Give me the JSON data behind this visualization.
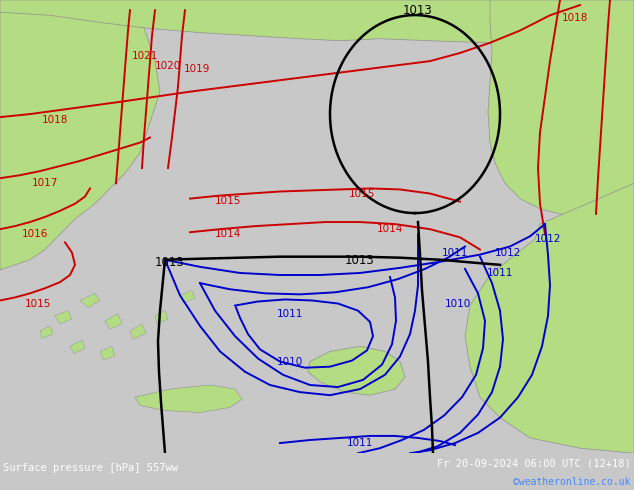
{
  "title_left": "Surface pressure [hPa] 557ww",
  "title_right": "Fr 20-09-2024 06:00 UTC (12+18)",
  "credit": "©weatheronline.co.uk",
  "bg_color": "#c8c8c8",
  "land_color": "#b4dc82",
  "sea_color": "#d4d4d4",
  "footer_bg": "#000000",
  "footer_text_color": "#ffffff",
  "credit_color": "#4488ff",
  "red_color": "#cc0000",
  "blue_color": "#0000cc",
  "black_color": "#000000",
  "gray_coast": "#909090",
  "contour_lw": 1.4,
  "black_lw": 1.8,
  "label_fs": 7.5
}
